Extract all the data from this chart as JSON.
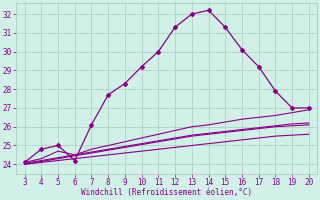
{
  "xlabel": "Windchill (Refroidissement éolien,°C)",
  "background_color": "#d0f0e8",
  "grid_color": "#b0c8c0",
  "line_color": "#880088",
  "x_ticks": [
    3,
    4,
    5,
    6,
    7,
    8,
    9,
    10,
    11,
    12,
    13,
    14,
    15,
    16,
    17,
    18,
    19,
    20
  ],
  "y_ticks": [
    24,
    25,
    26,
    27,
    28,
    29,
    30,
    31,
    32
  ],
  "xlim": [
    2.5,
    20.5
  ],
  "ylim": [
    23.5,
    32.6
  ],
  "main_x": [
    3,
    4,
    5,
    6,
    7,
    8,
    9,
    10,
    11,
    12,
    13,
    14,
    15,
    16,
    17,
    18,
    19,
    20
  ],
  "main_y": [
    24.1,
    24.8,
    25.0,
    24.2,
    26.1,
    27.7,
    28.3,
    29.2,
    30.0,
    31.3,
    32.0,
    32.2,
    31.3,
    30.1,
    29.2,
    27.9,
    27.0,
    27.0
  ],
  "line2_x": [
    3,
    4,
    5,
    6,
    7,
    8,
    9,
    10,
    11,
    12,
    13,
    14,
    15,
    16,
    17,
    18,
    19,
    20
  ],
  "line2_y": [
    24.1,
    24.3,
    24.7,
    24.5,
    24.8,
    25.0,
    25.2,
    25.4,
    25.6,
    25.8,
    26.0,
    26.1,
    26.25,
    26.4,
    26.5,
    26.6,
    26.75,
    26.9
  ],
  "line3_x": [
    3,
    4,
    5,
    6,
    7,
    8,
    9,
    10,
    11,
    12,
    13,
    14,
    15,
    16,
    17,
    18,
    19,
    20
  ],
  "line3_y": [
    24.05,
    24.2,
    24.35,
    24.5,
    24.65,
    24.8,
    24.95,
    25.1,
    25.25,
    25.4,
    25.55,
    25.65,
    25.75,
    25.85,
    25.95,
    26.05,
    26.15,
    26.2
  ],
  "line4_x": [
    3,
    4,
    5,
    6,
    7,
    8,
    9,
    10,
    11,
    12,
    13,
    14,
    15,
    16,
    17,
    18,
    19,
    20
  ],
  "line4_y": [
    24.0,
    24.15,
    24.3,
    24.45,
    24.6,
    24.75,
    24.9,
    25.05,
    25.2,
    25.35,
    25.5,
    25.6,
    25.7,
    25.8,
    25.9,
    26.0,
    26.05,
    26.1
  ],
  "line5_x": [
    3,
    4,
    5,
    6,
    7,
    8,
    9,
    10,
    11,
    12,
    13,
    14,
    15,
    16,
    17,
    18,
    19,
    20
  ],
  "line5_y": [
    24.0,
    24.1,
    24.2,
    24.3,
    24.4,
    24.5,
    24.6,
    24.7,
    24.8,
    24.9,
    25.0,
    25.1,
    25.2,
    25.3,
    25.4,
    25.5,
    25.55,
    25.6
  ]
}
